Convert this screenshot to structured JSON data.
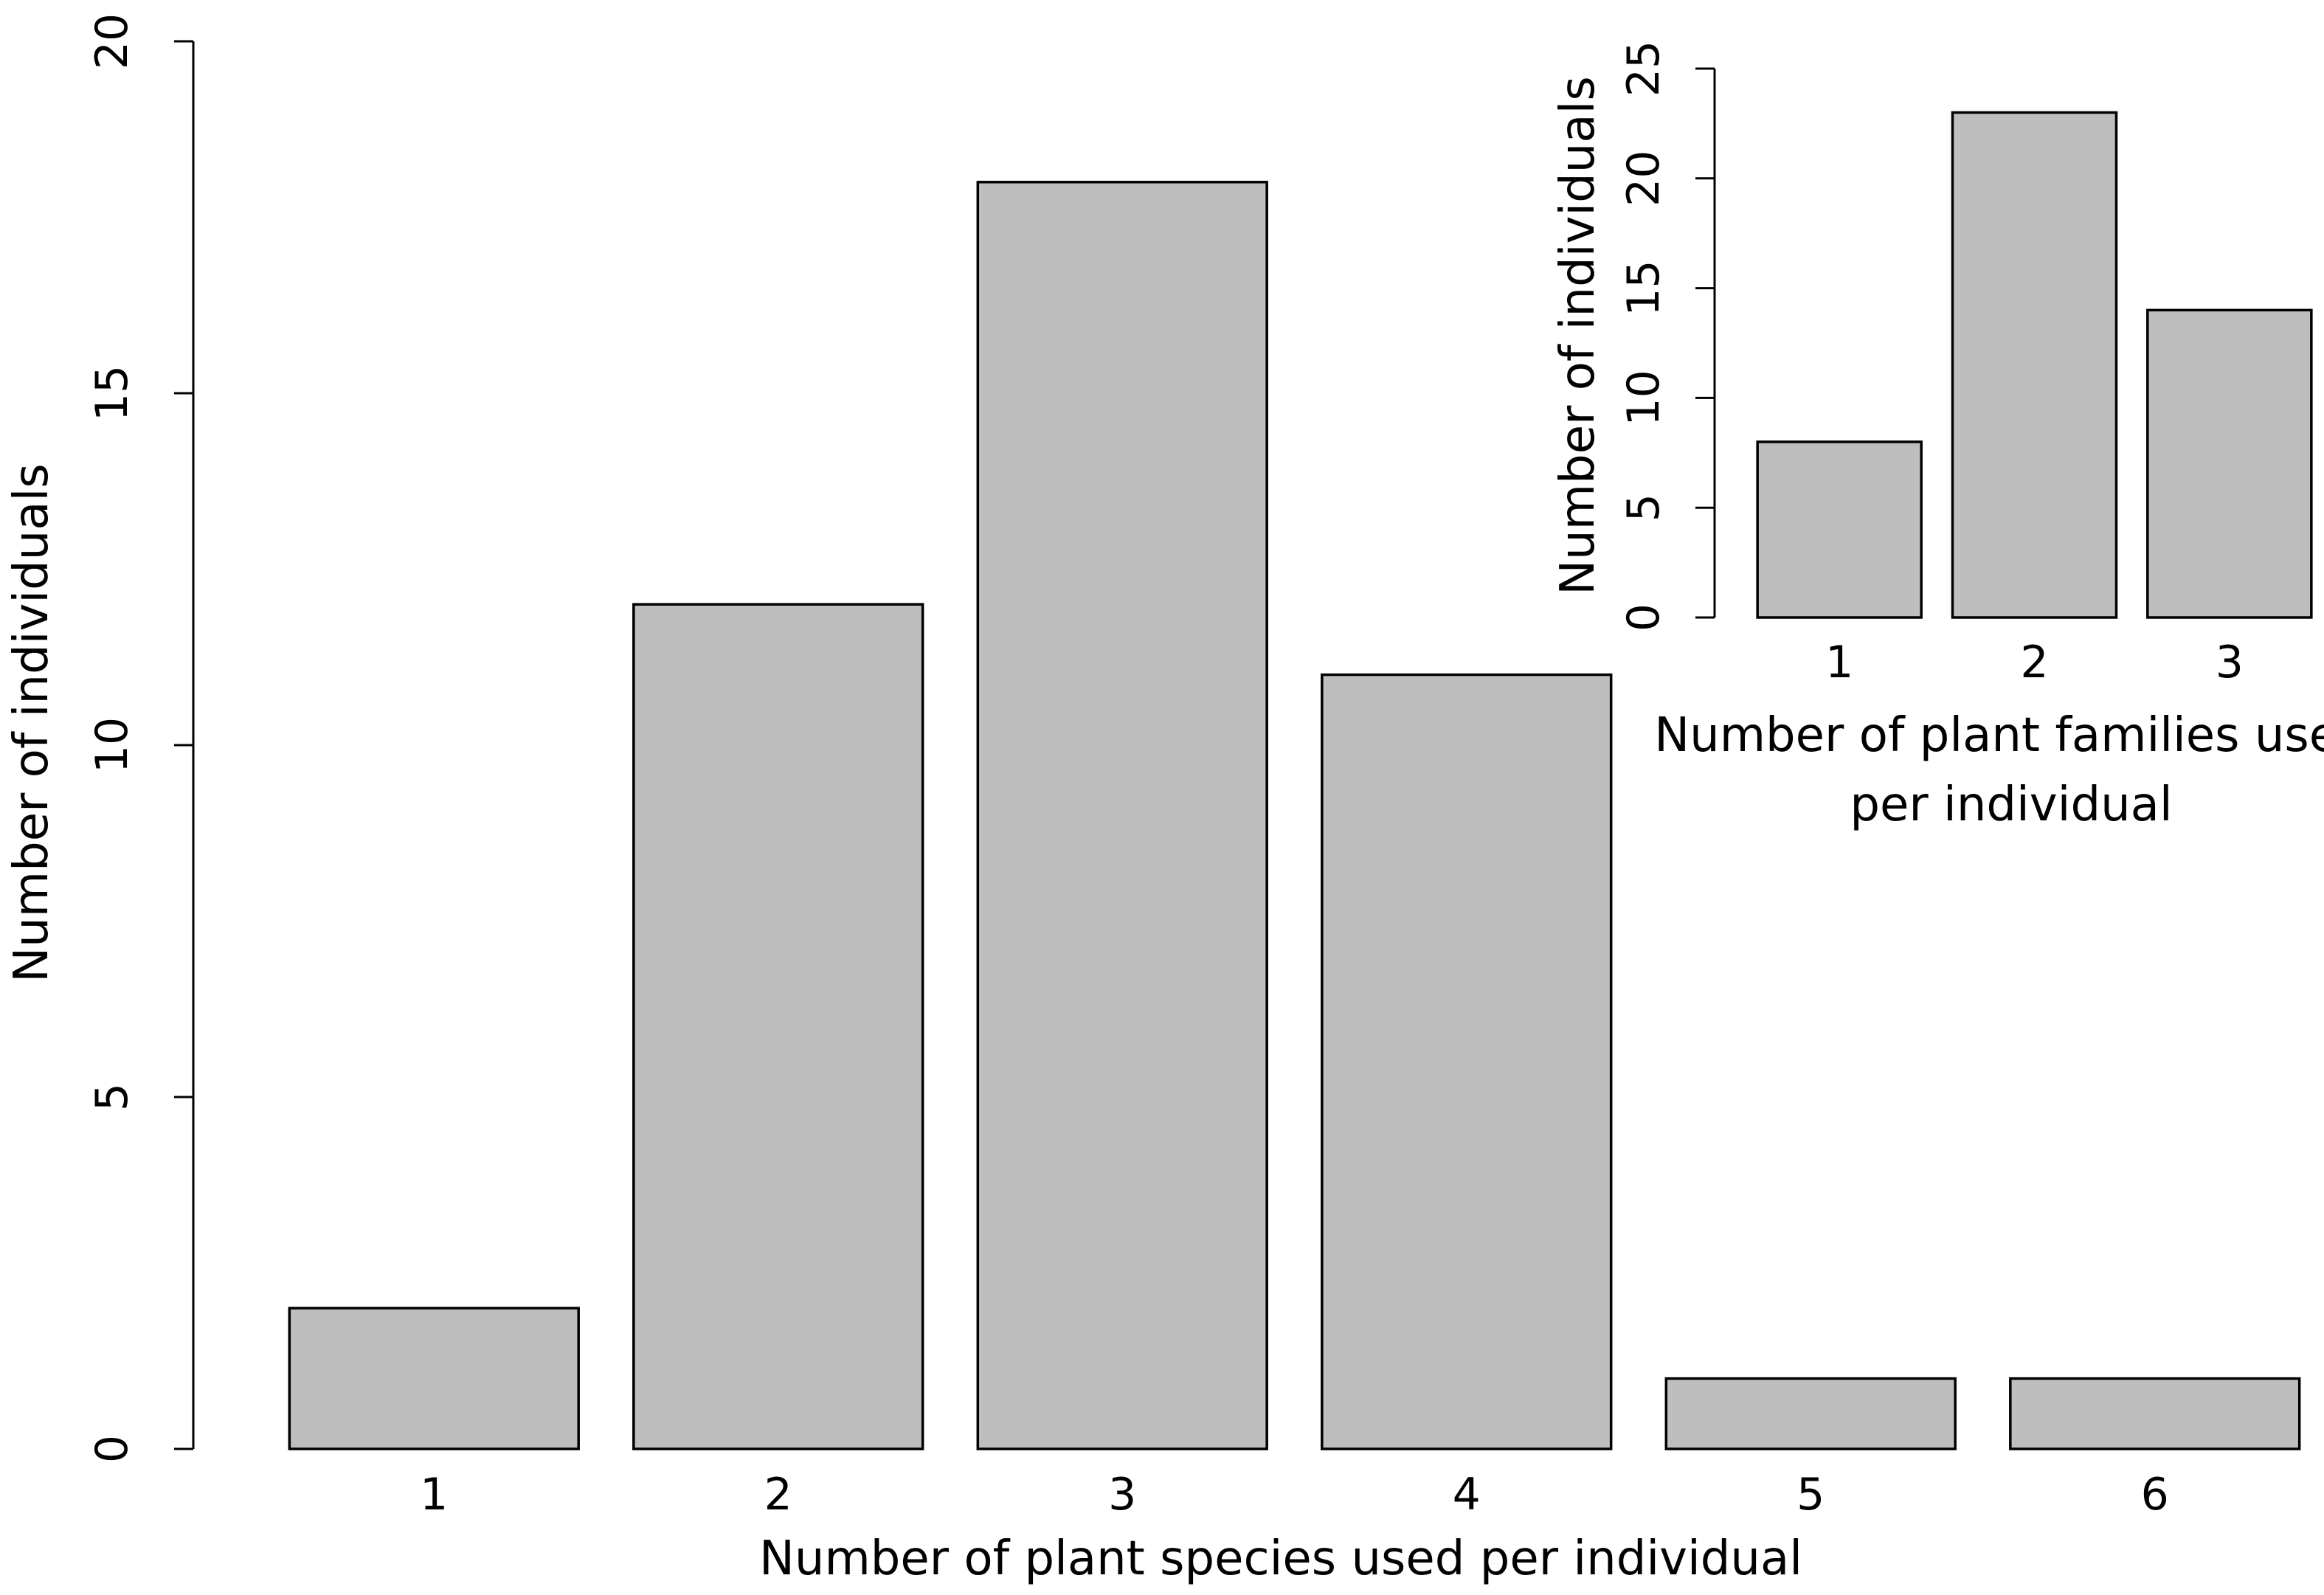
{
  "chart_data": [
    {
      "type": "bar",
      "categories": [
        "1",
        "2",
        "3",
        "4",
        "5",
        "6"
      ],
      "values": [
        2,
        12,
        18,
        11,
        1,
        1
      ],
      "xlabel": "Number of plant species used per individual",
      "ylabel": "Number of individuals",
      "ylim": [
        0,
        20
      ],
      "yticks": [
        "0",
        "5",
        "10",
        "15",
        "20"
      ],
      "grid": false,
      "bar_color": "#bebebe"
    },
    {
      "type": "bar",
      "categories": [
        "1",
        "2",
        "3"
      ],
      "values": [
        8,
        23,
        14
      ],
      "xlabel": "Number of plant families used per individual",
      "ylabel": "Number of individuals",
      "ylim": [
        0,
        25
      ],
      "yticks": [
        "0",
        "5",
        "10",
        "15",
        "20",
        "25"
      ],
      "grid": false,
      "bar_color": "#bebebe"
    }
  ]
}
